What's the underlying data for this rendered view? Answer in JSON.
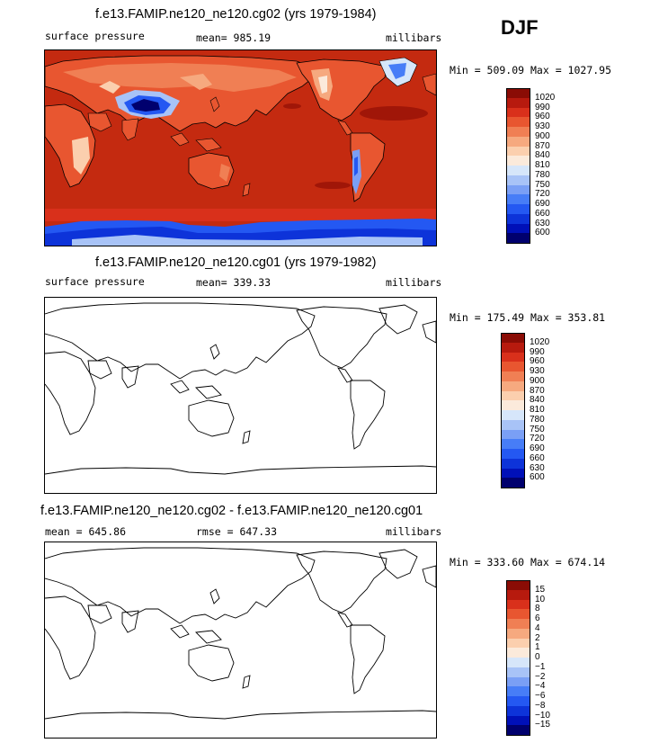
{
  "season": "DJF",
  "colors": {
    "scale": [
      "#00006e",
      "#0010b8",
      "#0d33d9",
      "#2458f2",
      "#477df7",
      "#7a9ff5",
      "#a8c3f7",
      "#d6e6fa",
      "#fbeadb",
      "#fbcfae",
      "#f6a97f",
      "#f07f54",
      "#e85630",
      "#d9301b",
      "#b71a0e",
      "#8a0c05"
    ]
  },
  "panels": [
    {
      "title": "f.e13.FAMIP.ne120_ne120.cg02 (yrs 1979-1984)",
      "left_text": "surface pressure",
      "center_text": "mean= 985.19",
      "right_text": "millibars",
      "stats": "Min = 509.09  Max = 1027.95",
      "filled": true,
      "colorbar_labels": [
        "1020",
        "990",
        "960",
        "930",
        "900",
        "870",
        "840",
        "810",
        "780",
        "750",
        "720",
        "690",
        "660",
        "630",
        "600"
      ]
    },
    {
      "title": "f.e13.FAMIP.ne120_ne120.cg01 (yrs 1979-1982)",
      "left_text": "surface pressure",
      "center_text": "mean= 339.33",
      "right_text": "millibars",
      "stats": "Min = 175.49  Max = 353.81",
      "filled": false,
      "colorbar_labels": [
        "1020",
        "990",
        "960",
        "930",
        "900",
        "870",
        "840",
        "810",
        "780",
        "750",
        "720",
        "690",
        "660",
        "630",
        "600"
      ]
    },
    {
      "title": "f.e13.FAMIP.ne120_ne120.cg02 - f.e13.FAMIP.ne120_ne120.cg01",
      "left_text": "mean = 645.86",
      "center_text": "rmse = 647.33",
      "right_text": "millibars",
      "stats": "Min = 333.60  Max = 674.14",
      "filled": false,
      "colorbar_labels": [
        "15",
        "10",
        "8",
        "6",
        "4",
        "2",
        "1",
        "0",
        "−1",
        "−2",
        "−4",
        "−6",
        "−8",
        "−10",
        "−15"
      ]
    }
  ],
  "chart_data": [
    {
      "type": "heatmap",
      "title": "f.e13.FAMIP.ne120_ne120.cg02 (yrs 1979-1984)",
      "variable": "surface pressure",
      "units": "millibars",
      "mean": 985.19,
      "min": 509.09,
      "max": 1027.95,
      "contour_levels": [
        600,
        630,
        660,
        690,
        720,
        750,
        780,
        810,
        840,
        870,
        900,
        930,
        960,
        990,
        1020
      ]
    },
    {
      "type": "heatmap",
      "title": "f.e13.FAMIP.ne120_ne120.cg01 (yrs 1979-1982)",
      "variable": "surface pressure",
      "units": "millibars",
      "mean": 339.33,
      "min": 175.49,
      "max": 353.81,
      "contour_levels": [
        600,
        630,
        660,
        690,
        720,
        750,
        780,
        810,
        840,
        870,
        900,
        930,
        960,
        990,
        1020
      ]
    },
    {
      "type": "heatmap",
      "title": "f.e13.FAMIP.ne120_ne120.cg02 - f.e13.FAMIP.ne120_ne120.cg01",
      "units": "millibars",
      "mean": 645.86,
      "rmse": 647.33,
      "min": 333.6,
      "max": 674.14,
      "contour_levels": [
        -15,
        -10,
        -8,
        -6,
        -4,
        -2,
        -1,
        0,
        1,
        2,
        4,
        6,
        8,
        10,
        15
      ]
    }
  ]
}
